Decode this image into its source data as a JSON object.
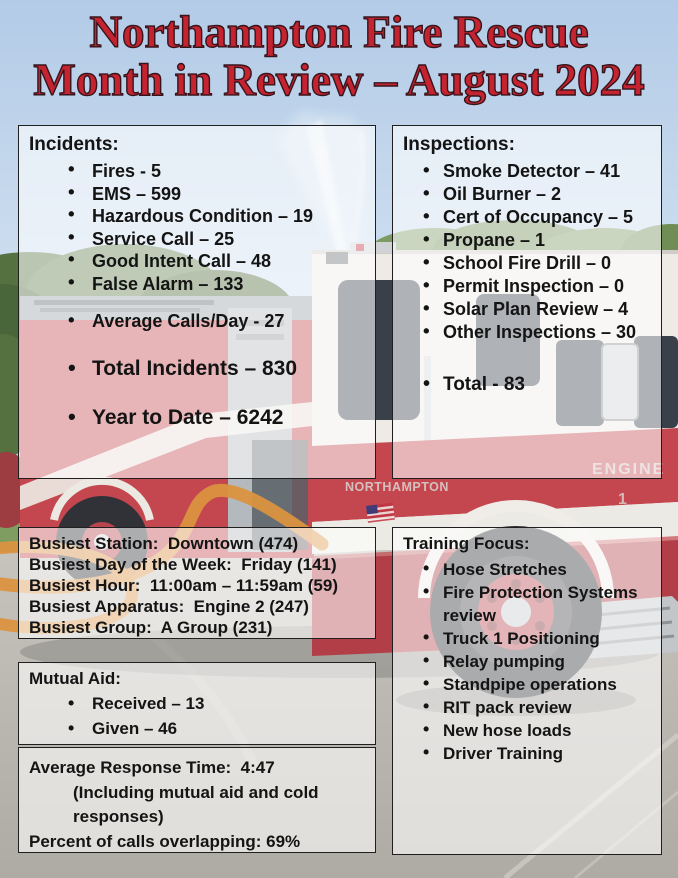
{
  "title": {
    "line1": "Northampton Fire Rescue",
    "line2": "Month in Review – August 2024"
  },
  "incidents": {
    "heading": "Incidents:",
    "items": [
      "Fires - 5",
      "EMS – 599",
      "Hazardous Condition – 19",
      "Service Call – 25",
      "Good Intent Call – 48",
      "False Alarm – 133"
    ],
    "average": "Average Calls/Day - 27",
    "total": "Total Incidents – 830",
    "year_to_date": "Year to Date – 6242"
  },
  "inspections": {
    "heading": "Inspections:",
    "items": [
      "Smoke Detector – 41",
      "Oil Burner – 2",
      "Cert of Occupancy – 5",
      "Propane – 1",
      "School Fire Drill – 0",
      "Permit Inspection – 0",
      "Solar Plan Review – 4",
      "Other Inspections – 30"
    ],
    "total": "Total - 83"
  },
  "busiest": {
    "lines": [
      "Busiest Station:  Downtown (474)",
      "Busiest Day of the Week:  Friday (141)",
      "Busiest Hour:  11:00am – 11:59am (59)",
      "Busiest Apparatus:  Engine 2 (247)",
      "Busiest Group:  A Group (231)"
    ]
  },
  "mutual_aid": {
    "heading": "Mutual Aid:",
    "items": [
      "Received – 13",
      "Given – 46"
    ]
  },
  "response": {
    "lines": [
      "Average Response Time:  4:47",
      "(Including mutual aid and cold",
      "responses)",
      "Percent of calls overlapping: 69%"
    ]
  },
  "training": {
    "heading": "Training Focus:",
    "items": [
      "Hose Stretches",
      "Fire Protection Systems review",
      "Truck 1 Positioning",
      "Relay pumping",
      "Standpipe operations",
      "RIT pack review",
      "New hose loads",
      "Driver Training"
    ]
  },
  "background_photo": {
    "truck_markings": {
      "name": "NORTHAMPTON",
      "unit": "ENGINE",
      "unit_number": "1"
    }
  },
  "colors": {
    "title_red": "#c5232f",
    "title_outline": "#35141c",
    "box_border": "#1f1f1f",
    "box_bg": "rgba(255,255,255,0.60)",
    "text": "#141414"
  }
}
